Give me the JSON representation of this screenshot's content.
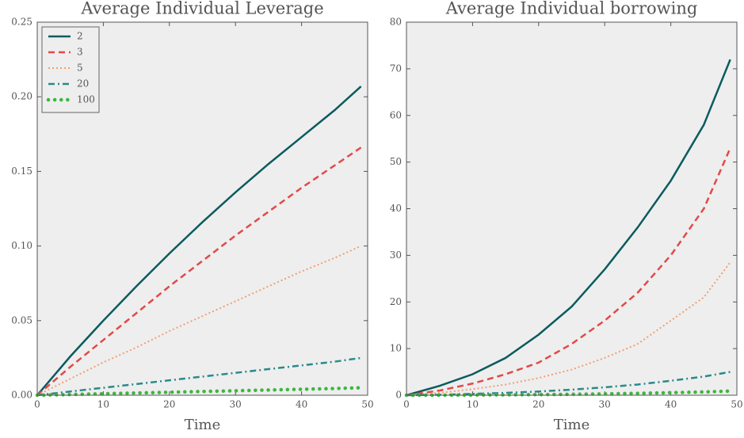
{
  "chart_data": [
    {
      "type": "line",
      "title": "Average Individual Leverage",
      "x_label": "Time",
      "x": [
        0,
        5,
        10,
        15,
        20,
        25,
        30,
        35,
        40,
        45,
        49
      ],
      "xlim": [
        0,
        50
      ],
      "xticks": [
        0,
        10,
        20,
        30,
        40,
        50
      ],
      "ylim": [
        0,
        0.25
      ],
      "yticks": [
        {
          "value": 0,
          "label": "0.00"
        },
        {
          "value": 0.05,
          "label": "0.05"
        },
        {
          "value": 0.1,
          "label": "0.10"
        },
        {
          "value": 0.15,
          "label": "0.15"
        },
        {
          "value": 0.2,
          "label": "0.20"
        },
        {
          "value": 0.25,
          "label": "0.25"
        }
      ],
      "legend": "upper left",
      "series": [
        {
          "name": "2",
          "color": "#0b5b5e",
          "style": "solid",
          "values": [
            0,
            0.026,
            0.05,
            0.073,
            0.095,
            0.116,
            0.136,
            0.155,
            0.173,
            0.191,
            0.207
          ]
        },
        {
          "name": "3",
          "color": "#e04a48",
          "style": "dashed",
          "values": [
            0,
            0.019,
            0.037,
            0.055,
            0.073,
            0.09,
            0.107,
            0.123,
            0.139,
            0.154,
            0.166
          ]
        },
        {
          "name": "5",
          "color": "#f0a070",
          "style": "dotted",
          "values": [
            0,
            0.011,
            0.022,
            0.032,
            0.043,
            0.053,
            0.063,
            0.073,
            0.083,
            0.092,
            0.1
          ]
        },
        {
          "name": "20",
          "color": "#2a8a8a",
          "style": "dashdot",
          "values": [
            0,
            0.0025,
            0.005,
            0.0075,
            0.01,
            0.0125,
            0.015,
            0.0175,
            0.02,
            0.0225,
            0.025
          ]
        },
        {
          "name": "100",
          "color": "#3cb83c",
          "style": "dots",
          "values": [
            0,
            0.0005,
            0.001,
            0.0015,
            0.002,
            0.0025,
            0.003,
            0.0035,
            0.004,
            0.0045,
            0.005
          ]
        }
      ]
    },
    {
      "type": "line",
      "title": "Average Individual borrowing",
      "x_label": "Time",
      "x": [
        0,
        5,
        10,
        15,
        20,
        25,
        30,
        35,
        40,
        45,
        49
      ],
      "xlim": [
        0,
        50
      ],
      "xticks": [
        0,
        10,
        20,
        30,
        40,
        50
      ],
      "ylim": [
        0,
        80
      ],
      "yticks": [
        0,
        10,
        20,
        30,
        40,
        50,
        60,
        70,
        80
      ],
      "series": [
        {
          "color": "#0b5b5e",
          "style": "solid",
          "values": [
            0,
            2,
            4.5,
            8,
            13,
            19,
            27,
            36,
            46,
            58,
            72
          ]
        },
        {
          "color": "#e04a48",
          "style": "dashed",
          "values": [
            0,
            1,
            2.5,
            4.5,
            7,
            11,
            16,
            22,
            30,
            40,
            53
          ]
        },
        {
          "color": "#f0a070",
          "style": "dotted",
          "values": [
            0,
            0.5,
            1.3,
            2.3,
            3.7,
            5.5,
            8,
            11,
            16,
            21,
            28.5
          ]
        },
        {
          "color": "#2a8a8a",
          "style": "dashdot",
          "values": [
            0,
            0.1,
            0.3,
            0.5,
            0.8,
            1.2,
            1.7,
            2.3,
            3.1,
            4,
            5
          ]
        },
        {
          "color": "#3cb83c",
          "style": "dots",
          "values": [
            0,
            0.02,
            0.05,
            0.09,
            0.14,
            0.2,
            0.3,
            0.4,
            0.55,
            0.7,
            0.9
          ]
        }
      ]
    }
  ]
}
